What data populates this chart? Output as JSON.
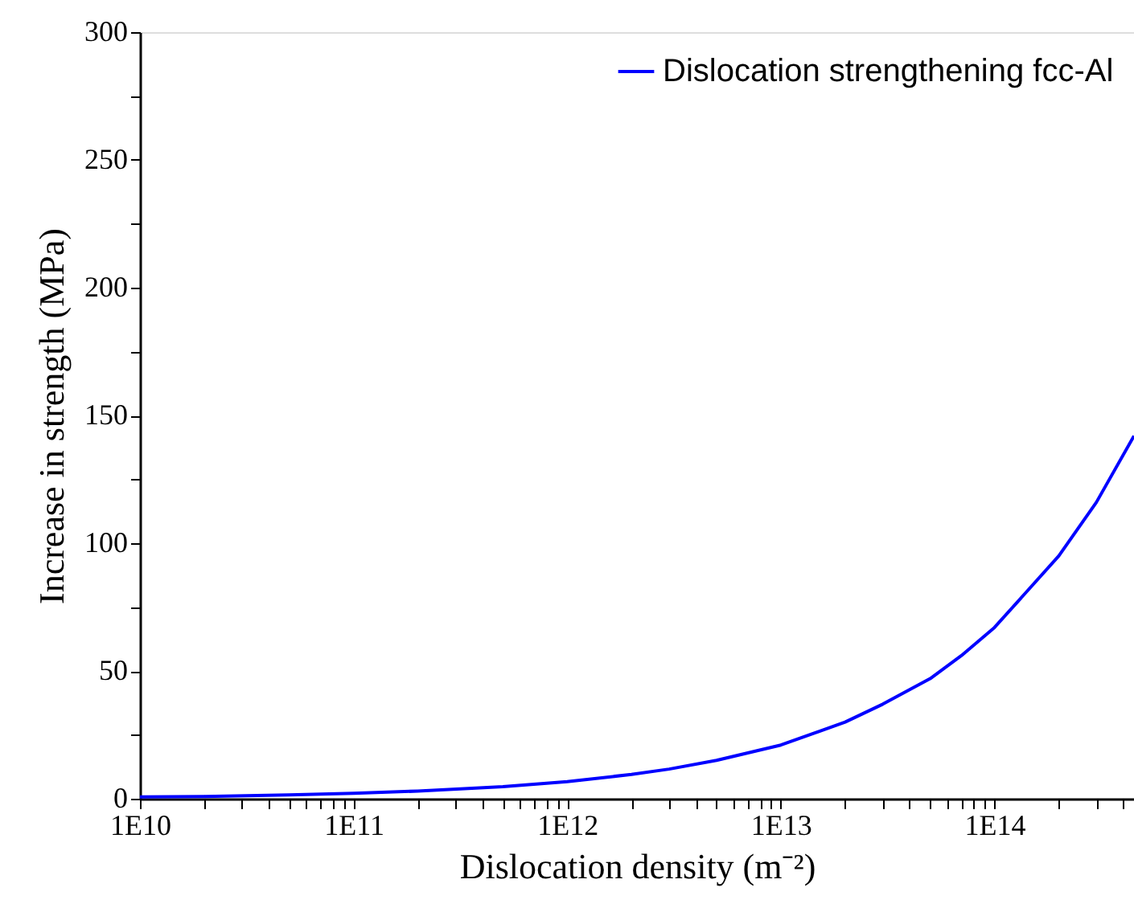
{
  "chart_data": {
    "type": "line",
    "xlabel": "Dislocation density (m⁻²)",
    "ylabel": "Increase in strength (MPa)",
    "log": "x",
    "xlim": [
      10000000000.0,
      450000000000000.0
    ],
    "ylim": [
      0,
      300
    ],
    "xticks": [
      {
        "value": 10000000000.0,
        "label": "1E10"
      },
      {
        "value": 20000000000.0,
        "label": null
      },
      {
        "value": 30000000000.0,
        "label": null
      },
      {
        "value": 40000000000.0,
        "label": null
      },
      {
        "value": 50000000000.0,
        "label": null
      },
      {
        "value": 60000000000.0,
        "label": null
      },
      {
        "value": 70000000000.0,
        "label": null
      },
      {
        "value": 80000000000.0,
        "label": null
      },
      {
        "value": 90000000000.0,
        "label": null
      },
      {
        "value": 100000000000.0,
        "label": "1E11"
      },
      {
        "value": 200000000000.0,
        "label": null
      },
      {
        "value": 300000000000.0,
        "label": null
      },
      {
        "value": 400000000000.0,
        "label": null
      },
      {
        "value": 500000000000.0,
        "label": null
      },
      {
        "value": 600000000000.0,
        "label": null
      },
      {
        "value": 700000000000.0,
        "label": null
      },
      {
        "value": 800000000000.0,
        "label": null
      },
      {
        "value": 900000000000.0,
        "label": null
      },
      {
        "value": 1000000000000.0,
        "label": "1E12"
      },
      {
        "value": 2000000000000.0,
        "label": null
      },
      {
        "value": 3000000000000.0,
        "label": null
      },
      {
        "value": 4000000000000.0,
        "label": null
      },
      {
        "value": 5000000000000.0,
        "label": null
      },
      {
        "value": 6000000000000.0,
        "label": null
      },
      {
        "value": 7000000000000.0,
        "label": null
      },
      {
        "value": 8000000000000.0,
        "label": null
      },
      {
        "value": 9000000000000.0,
        "label": null
      },
      {
        "value": 10000000000000.0,
        "label": "1E13"
      },
      {
        "value": 20000000000000.0,
        "label": null
      },
      {
        "value": 30000000000000.0,
        "label": null
      },
      {
        "value": 40000000000000.0,
        "label": null
      },
      {
        "value": 50000000000000.0,
        "label": null
      },
      {
        "value": 60000000000000.0,
        "label": null
      },
      {
        "value": 70000000000000.0,
        "label": null
      },
      {
        "value": 80000000000000.0,
        "label": null
      },
      {
        "value": 90000000000000.0,
        "label": null
      },
      {
        "value": 100000000000000.0,
        "label": "1E14"
      },
      {
        "value": 200000000000000.0,
        "label": null
      },
      {
        "value": 300000000000000.0,
        "label": null
      },
      {
        "value": 400000000000000.0,
        "label": null
      }
    ],
    "yticks": [
      0,
      {
        "value": 25,
        "label": null
      },
      50,
      {
        "value": 75,
        "label": null
      },
      100,
      {
        "value": 125,
        "label": null
      },
      150,
      {
        "value": 175,
        "label": null
      },
      200,
      {
        "value": 225,
        "label": null
      },
      250,
      {
        "value": 275,
        "label": null
      },
      300
    ],
    "grid": false,
    "legend": "top right",
    "marker": "none",
    "line_style": "solid",
    "x": [
      10000000000.0,
      20000000000.0,
      50000000000.0,
      100000000000.0,
      200000000000.0,
      500000000000.0,
      1000000000000.0,
      2000000000000.0,
      3000000000000.0,
      5000000000000.0,
      10000000000000.0,
      20000000000000.0,
      30000000000000.0,
      50000000000000.0,
      70000000000000.0,
      100000000000000.0,
      200000000000000.0,
      300000000000000.0,
      450000000000000.0
    ],
    "series": [
      {
        "name": "Dislocation strengthening fcc-Al",
        "color": "#0000ff",
        "values": [
          0.7,
          0.9,
          1.5,
          2.1,
          3.0,
          4.7,
          6.7,
          9.5,
          11.6,
          15,
          21,
          30,
          37,
          47,
          56,
          67,
          95,
          116,
          142
        ]
      }
    ]
  }
}
